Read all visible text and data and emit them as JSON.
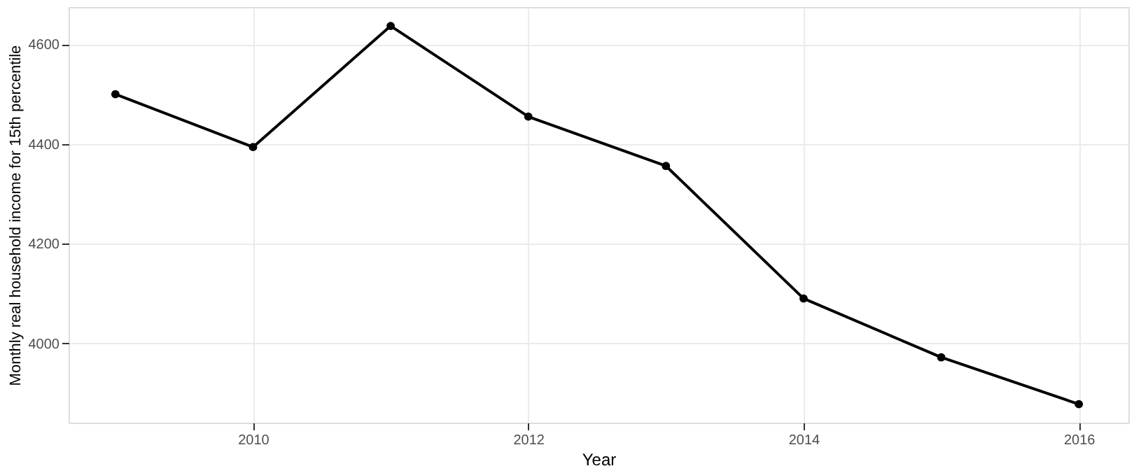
{
  "chart_data": {
    "type": "line",
    "xlabel": "Year",
    "ylabel": "Monthly real household income for 15th percentile",
    "x": [
      2009,
      2010,
      2011,
      2012,
      2013,
      2014,
      2015,
      2016
    ],
    "series": [
      {
        "color": "#000000",
        "values": [
          4500,
          4394,
          4637,
          4455,
          4356,
          4090,
          3972,
          3878
        ]
      }
    ],
    "xlim": [
      2008.66,
      2016.36
    ],
    "xticks": [
      2010,
      2012,
      2014,
      2016
    ],
    "ylim": [
      3841,
      4675
    ],
    "yticks": [
      4000,
      4200,
      4400,
      4600
    ],
    "grid": true,
    "marker": "circle",
    "line_style": "solid"
  }
}
